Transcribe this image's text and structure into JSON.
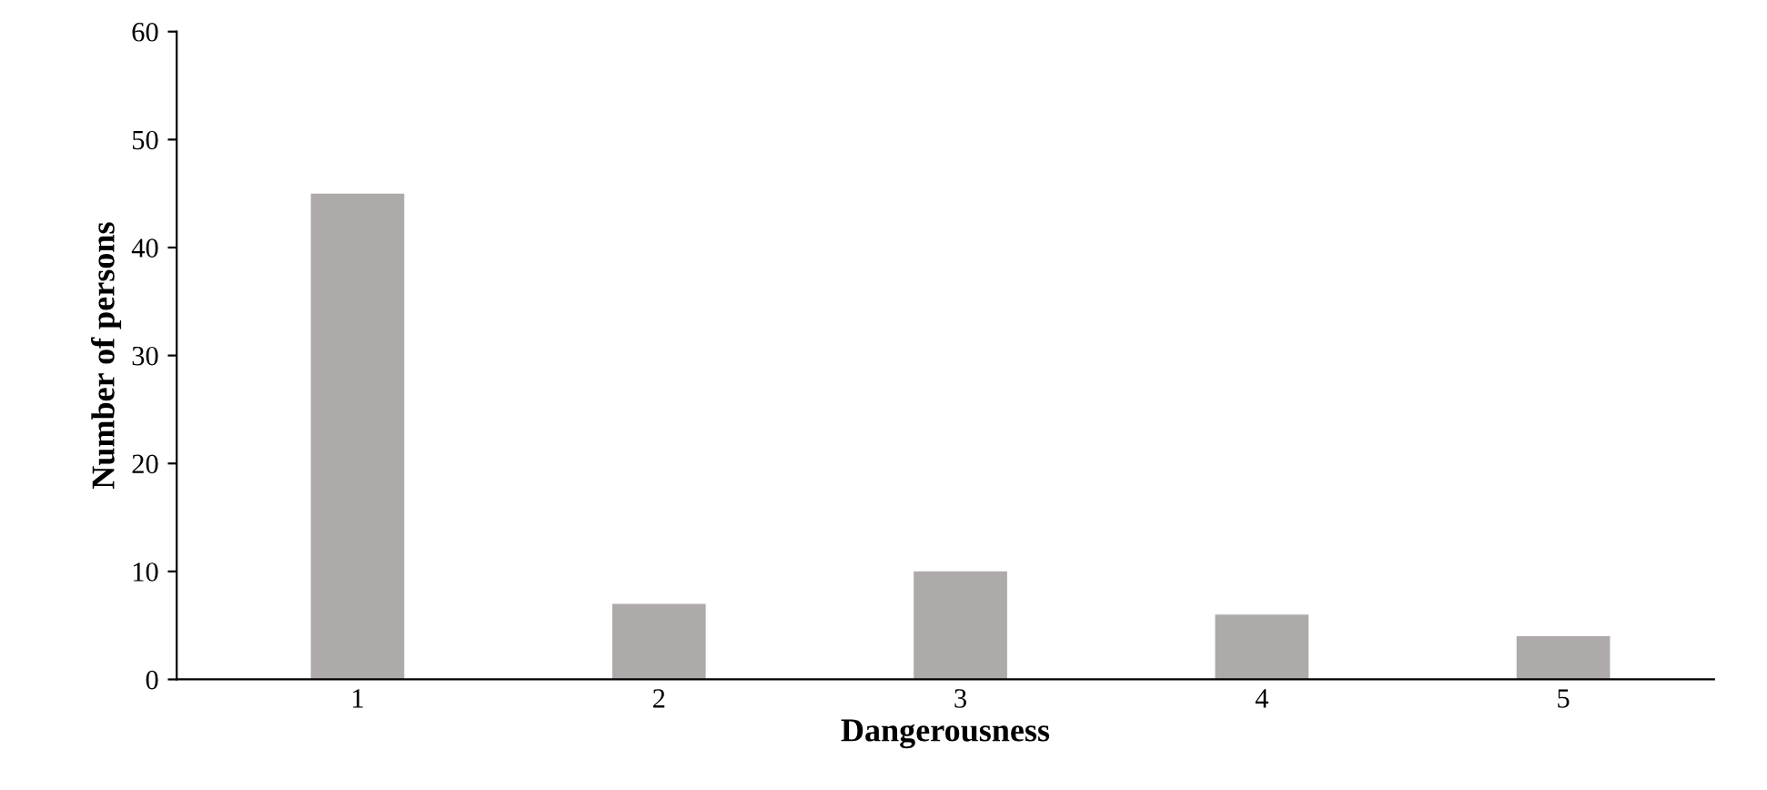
{
  "chart_data": {
    "type": "bar",
    "xlabel": "Dangerousness",
    "ylabel": "Number of persons",
    "categories": [
      "1",
      "2",
      "3",
      "4",
      "5"
    ],
    "values": [
      45,
      7,
      10,
      6,
      4
    ],
    "color": "#aeaaa9",
    "ylim": [
      0,
      60
    ],
    "yticks": [
      0,
      10,
      20,
      30,
      40,
      50,
      60
    ],
    "grid": false,
    "legend": false
  }
}
